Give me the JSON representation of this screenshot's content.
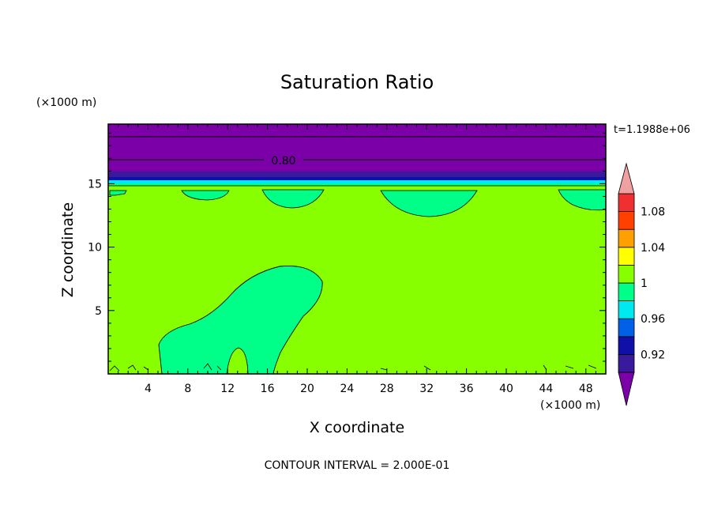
{
  "chart_data": {
    "type": "heatmap",
    "title": "Saturation Ratio",
    "xlabel": "X coordinate",
    "ylabel": "Z coordinate",
    "x_unit_label": "(×1000 m)",
    "y_unit_label": "(×1000 m)",
    "time_label": "t=1.1988e+06",
    "footer": "CONTOUR INTERVAL = 2.000E-01",
    "contour_label": "0.80",
    "xlim": [
      0,
      50
    ],
    "ylim": [
      0,
      19.7
    ],
    "xticks": [
      "4",
      "8",
      "12",
      "16",
      "20",
      "24",
      "28",
      "32",
      "36",
      "40",
      "44",
      "48"
    ],
    "xtick_values": [
      4,
      8,
      12,
      16,
      20,
      24,
      28,
      32,
      36,
      40,
      44,
      48
    ],
    "yticks": [
      "5",
      "10",
      "15"
    ],
    "ytick_values": [
      5,
      10,
      15
    ],
    "colorbar": {
      "labels": [
        "0.92",
        "0.96",
        "1",
        "1.04",
        "1.08"
      ],
      "label_values": [
        0.92,
        0.96,
        1.0,
        1.04,
        1.08
      ],
      "levels": [
        0.9,
        0.92,
        0.94,
        0.96,
        0.98,
        1.0,
        1.02,
        1.04,
        1.06,
        1.08,
        1.1
      ],
      "colors": [
        "#7b00a8",
        "#3a1a9c",
        "#1010a8",
        "#0060e8",
        "#00e8f0",
        "#00ff88",
        "#88ff00",
        "#ffff00",
        "#ffa000",
        "#ff4000",
        "#f03030",
        "#f0a0a0"
      ]
    },
    "region_values": {
      "background": 1.01,
      "upper_layer": 0.8,
      "upper_band_dark": 0.91,
      "upper_band_mid": 0.93,
      "cyan_line": 0.97,
      "moist_pockets": 0.99
    },
    "colors": {
      "background": "#88ff00",
      "upper_layer": "#7b00a8",
      "upper_band_dark": "#3a1a9c",
      "upper_band_mid": "#1010a8",
      "cyan_line": "#00e8f0",
      "moist_pockets": "#00ff88"
    }
  }
}
